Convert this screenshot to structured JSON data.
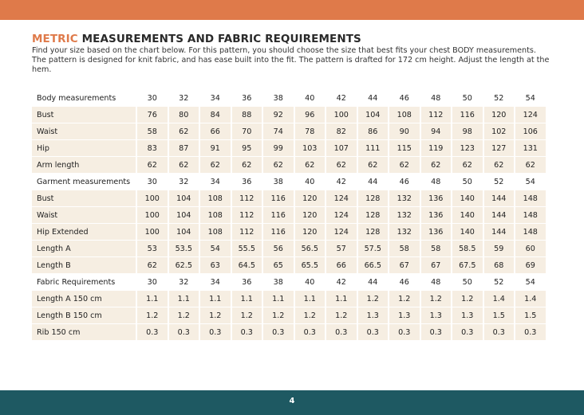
{
  "header": {
    "title_highlight": "METRIC",
    "title": "MEASUREMENTS AND FABRIC REQUIREMENTS",
    "intro": "Find your size based on the chart below. For this pattern, you should choose the size that best fits your chest BODY measurements. The pattern is designed for knit fabric, and has ease built into the fit. The pattern is drafted for 172 cm height.  Adjust the length at the hem."
  },
  "table": {
    "sections": [
      {
        "header": [
          "Body measurements",
          "30",
          "32",
          "34",
          "36",
          "38",
          "40",
          "42",
          "44",
          "46",
          "48",
          "50",
          "52",
          "54"
        ],
        "rows": [
          [
            "Bust",
            "76",
            "80",
            "84",
            "88",
            "92",
            "96",
            "100",
            "104",
            "108",
            "112",
            "116",
            "120",
            "124"
          ],
          [
            "Waist",
            "58",
            "62",
            "66",
            "70",
            "74",
            "78",
            "82",
            "86",
            "90",
            "94",
            "98",
            "102",
            "106"
          ],
          [
            "Hip",
            "83",
            "87",
            "91",
            "95",
            "99",
            "103",
            "107",
            "111",
            "115",
            "119",
            "123",
            "127",
            "131"
          ],
          [
            "Arm length",
            "62",
            "62",
            "62",
            "62",
            "62",
            "62",
            "62",
            "62",
            "62",
            "62",
            "62",
            "62",
            "62"
          ]
        ]
      },
      {
        "header": [
          "Garment measurements",
          "30",
          "32",
          "34",
          "36",
          "38",
          "40",
          "42",
          "44",
          "46",
          "48",
          "50",
          "52",
          "54"
        ],
        "rows": [
          [
            "Bust",
            "100",
            "104",
            "108",
            "112",
            "116",
            "120",
            "124",
            "128",
            "132",
            "136",
            "140",
            "144",
            "148"
          ],
          [
            "Waist",
            "100",
            "104",
            "108",
            "112",
            "116",
            "120",
            "124",
            "128",
            "132",
            "136",
            "140",
            "144",
            "148"
          ],
          [
            "Hip Extended",
            "100",
            "104",
            "108",
            "112",
            "116",
            "120",
            "124",
            "128",
            "132",
            "136",
            "140",
            "144",
            "148"
          ],
          [
            "Length A",
            "53",
            "53.5",
            "54",
            "55.5",
            "56",
            "56.5",
            "57",
            "57.5",
            "58",
            "58",
            "58.5",
            "59",
            "60"
          ],
          [
            "Length B",
            "62",
            "62.5",
            "63",
            "64.5",
            "65",
            "65.5",
            "66",
            "66.5",
            "67",
            "67",
            "67.5",
            "68",
            "69"
          ]
        ]
      },
      {
        "header": [
          "Fabric Requirements",
          "30",
          "32",
          "34",
          "36",
          "38",
          "40",
          "42",
          "44",
          "46",
          "48",
          "50",
          "52",
          "54"
        ],
        "rows": [
          [
            "Length A 150 cm",
            "1.1",
            "1.1",
            "1.1",
            "1.1",
            "1.1",
            "1.1",
            "1.1",
            "1.2",
            "1.2",
            "1.2",
            "1.2",
            "1.4",
            "1.4"
          ],
          [
            "Length B 150 cm",
            "1.2",
            "1.2",
            "1.2",
            "1.2",
            "1.2",
            "1.2",
            "1.2",
            "1.3",
            "1.3",
            "1.3",
            "1.3",
            "1.5",
            "1.5"
          ],
          [
            "Rib 150 cm",
            "0.3",
            "0.3",
            "0.3",
            "0.3",
            "0.3",
            "0.3",
            "0.3",
            "0.3",
            "0.3",
            "0.3",
            "0.3",
            "0.3",
            "0.3"
          ]
        ]
      }
    ]
  },
  "footer": {
    "page": "4"
  }
}
